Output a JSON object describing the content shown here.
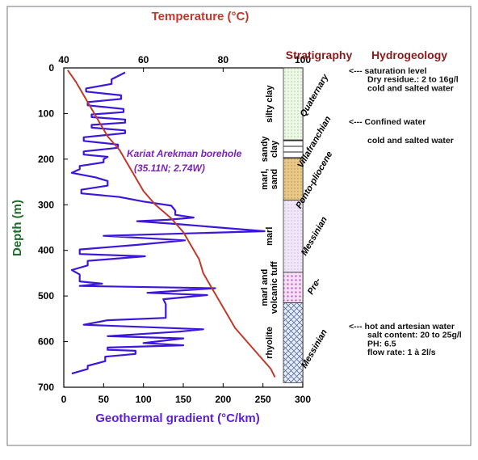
{
  "chart_data": {
    "type": "line",
    "title": "",
    "depth_axis": {
      "label": "Depth (m)",
      "ylim": [
        0,
        700
      ],
      "ticks": [
        0,
        100,
        200,
        300,
        400,
        500,
        600,
        700
      ],
      "inverted": true,
      "color": "#1e6b2a"
    },
    "gradient_axis": {
      "label": "Geothermal gradient (°C/km)",
      "xlim": [
        0,
        300
      ],
      "ticks": [
        0,
        50,
        100,
        150,
        200,
        250,
        300
      ],
      "color": "#5b1fd6"
    },
    "temperature_axis": {
      "label": "Temperature (°C)",
      "xlim": [
        40,
        100
      ],
      "ticks": [
        40,
        60,
        80,
        100
      ],
      "color": "#c0392b"
    },
    "annotation": {
      "line1": "Kariat Arekman borehole",
      "line2": "(35.11N; 2.74W)",
      "color": "#7b22b8"
    },
    "series": [
      {
        "key": "gradient",
        "color": "#3d16d9",
        "points": [
          [
            77,
            10
          ],
          [
            60,
            25
          ],
          [
            60,
            35
          ],
          [
            28,
            45
          ],
          [
            28,
            52
          ],
          [
            72,
            60
          ],
          [
            72,
            68
          ],
          [
            30,
            75
          ],
          [
            30,
            82
          ],
          [
            75,
            90
          ],
          [
            75,
            97
          ],
          [
            35,
            102
          ],
          [
            35,
            108
          ],
          [
            77,
            113
          ],
          [
            77,
            120
          ],
          [
            35,
            125
          ],
          [
            35,
            131
          ],
          [
            77,
            137
          ],
          [
            77,
            143
          ],
          [
            25,
            152
          ],
          [
            25,
            160
          ],
          [
            68,
            168
          ],
          [
            68,
            175
          ],
          [
            25,
            183
          ],
          [
            25,
            190
          ],
          [
            55,
            195
          ],
          [
            50,
            200
          ],
          [
            50,
            207
          ],
          [
            20,
            215
          ],
          [
            20,
            222
          ],
          [
            10,
            230
          ],
          [
            40,
            240
          ],
          [
            55,
            248
          ],
          [
            55,
            258
          ],
          [
            22,
            267
          ],
          [
            22,
            275
          ],
          [
            70,
            283
          ],
          [
            100,
            293
          ],
          [
            135,
            302
          ],
          [
            140,
            313
          ],
          [
            140,
            322
          ],
          [
            163,
            328
          ],
          [
            130,
            333
          ],
          [
            92,
            336
          ],
          [
            147,
            343
          ],
          [
            252,
            358
          ],
          [
            50,
            368
          ],
          [
            152,
            378
          ],
          [
            92,
            388
          ],
          [
            20,
            398
          ],
          [
            20,
            408
          ],
          [
            102,
            413
          ],
          [
            30,
            423
          ],
          [
            30,
            433
          ],
          [
            10,
            443
          ],
          [
            20,
            453
          ],
          [
            20,
            463
          ],
          [
            20,
            468
          ],
          [
            48,
            473
          ],
          [
            20,
            478
          ],
          [
            190,
            483
          ],
          [
            105,
            493
          ],
          [
            180,
            498
          ],
          [
            125,
            507
          ],
          [
            128,
            518
          ],
          [
            128,
            528
          ],
          [
            128,
            538
          ],
          [
            128,
            548
          ],
          [
            55,
            553
          ],
          [
            25,
            563
          ],
          [
            175,
            573
          ],
          [
            145,
            578
          ],
          [
            55,
            588
          ],
          [
            150,
            593
          ],
          [
            100,
            603
          ],
          [
            150,
            608
          ],
          [
            55,
            613
          ],
          [
            55,
            618
          ],
          [
            90,
            620
          ],
          [
            90,
            627
          ],
          [
            52,
            633
          ],
          [
            52,
            643
          ],
          [
            30,
            653
          ],
          [
            30,
            660
          ],
          [
            10,
            670
          ]
        ]
      },
      {
        "key": "temperature",
        "color": "#c0392b",
        "points": [
          [
            41,
            5
          ],
          [
            43,
            30
          ],
          [
            45,
            60
          ],
          [
            47,
            90
          ],
          [
            49,
            120
          ],
          [
            51,
            150
          ],
          [
            54,
            180
          ],
          [
            56,
            210
          ],
          [
            58,
            240
          ],
          [
            60,
            270
          ],
          [
            63,
            300
          ],
          [
            67,
            330
          ],
          [
            70,
            360
          ],
          [
            72,
            390
          ],
          [
            74,
            420
          ],
          [
            75,
            450
          ],
          [
            77,
            480
          ],
          [
            79,
            510
          ],
          [
            81,
            540
          ],
          [
            83,
            570
          ],
          [
            86,
            600
          ],
          [
            89,
            630
          ],
          [
            92,
            660
          ],
          [
            93,
            678
          ]
        ]
      }
    ],
    "stratigraphy": {
      "title": "Stratigraphy",
      "title_color": "#8b1a1a",
      "units": [
        {
          "from": 0,
          "to": 158,
          "fill": "dots-green",
          "lithology": "silty clay"
        },
        {
          "from": 158,
          "to": 198,
          "fill": "lines",
          "lithology": "sandy clay"
        },
        {
          "from": 198,
          "to": 290,
          "fill": "dots-orange",
          "lithology": "marl, sand"
        },
        {
          "from": 290,
          "to": 448,
          "fill": "dots-purple",
          "lithology": "marl"
        },
        {
          "from": 448,
          "to": 515,
          "fill": "dots-magenta",
          "lithology": "marl and volcanic tuff"
        },
        {
          "from": 515,
          "to": 690,
          "fill": "crosshatch",
          "lithology": "rhyolite"
        }
      ],
      "ages": [
        {
          "depth": 60,
          "text": "Quaternary"
        },
        {
          "depth": 162,
          "text": "Villafranchian"
        },
        {
          "depth": 245,
          "text": "Ponto-pliocene"
        },
        {
          "depth": 368,
          "text": "Messinian"
        },
        {
          "depth": 478,
          "text": "Pre-"
        },
        {
          "depth": 615,
          "text": "Messinian"
        }
      ]
    },
    "hydrogeology": {
      "title": "Hydrogeology",
      "title_color": "#8b1a1a",
      "notes": [
        {
          "depth": 5,
          "text": "<--- saturation level"
        },
        {
          "depth": 24,
          "text": "Dry residue.: 2 to 16g/l"
        },
        {
          "depth": 43,
          "text": "cold and salted water"
        },
        {
          "depth": 117,
          "text": "<--- Confined water"
        },
        {
          "depth": 158,
          "text": "cold and salted water"
        },
        {
          "depth": 565,
          "text": "<--- hot and artesian water"
        },
        {
          "depth": 584,
          "text": "salt content: 20 to 25g/l"
        },
        {
          "depth": 603,
          "text": "PH: 6.5"
        },
        {
          "depth": 622,
          "text": "flow rate: 1 à 2l/s"
        }
      ]
    }
  }
}
